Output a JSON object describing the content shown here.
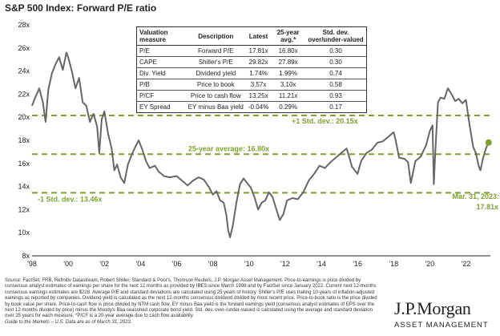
{
  "title": "S&P 500 Index: Forward P/E ratio",
  "chart_data": {
    "type": "line",
    "ylim": [
      8,
      28
    ],
    "xlim": [
      1998,
      2023.35
    ],
    "y_ticks": [
      8,
      10,
      12,
      14,
      16,
      18,
      20,
      22,
      24,
      26,
      28
    ],
    "y_tick_labels": [
      "8x",
      "10x",
      "12x",
      "14x",
      "16x",
      "18x",
      "20x",
      "22x",
      "24x",
      "26x",
      "28x"
    ],
    "x_ticks": [
      1998,
      2000,
      2002,
      2004,
      2006,
      2008,
      2010,
      2012,
      2014,
      2016,
      2018,
      2020,
      2022
    ],
    "x_tick_labels": [
      "'98",
      "'00",
      "'02",
      "'04",
      "'06",
      "'08",
      "'10",
      "'12",
      "'14",
      "'16",
      "'18",
      "'20",
      "'22"
    ],
    "series": [
      {
        "x": [
          1998.0,
          1998.2,
          1998.4,
          1998.6,
          1998.75,
          1998.9,
          1999.1,
          1999.3,
          1999.5,
          1999.7,
          1999.9,
          2000.0,
          2000.2,
          2000.4,
          2000.6,
          2000.8,
          2001.0,
          2001.2,
          2001.4,
          2001.6,
          2001.72,
          2001.85,
          2002.0,
          2002.2,
          2002.4,
          2002.55,
          2002.7,
          2002.9,
          2003.1,
          2003.3,
          2003.5,
          2003.7,
          2003.9,
          2004.1,
          2004.3,
          2004.5,
          2004.8,
          2005.0,
          2005.3,
          2005.6,
          2006.0,
          2006.3,
          2006.6,
          2006.9,
          2007.2,
          2007.5,
          2007.8,
          2008.0,
          2008.2,
          2008.4,
          2008.6,
          2008.75,
          2008.85,
          2008.95,
          2009.1,
          2009.3,
          2009.5,
          2009.7,
          2009.9,
          2010.1,
          2010.3,
          2010.5,
          2010.7,
          2010.9,
          2011.1,
          2011.3,
          2011.5,
          2011.7,
          2011.9,
          2012.1,
          2012.4,
          2012.7,
          2013.0,
          2013.3,
          2013.6,
          2013.9,
          2014.2,
          2014.5,
          2014.8,
          2015.1,
          2015.4,
          2015.7,
          2016.0,
          2016.2,
          2016.5,
          2016.8,
          2017.1,
          2017.4,
          2017.7,
          2018.0,
          2018.1,
          2018.3,
          2018.6,
          2018.8,
          2018.95,
          2019.2,
          2019.5,
          2019.8,
          2020.0,
          2020.15,
          2020.22,
          2020.3,
          2020.45,
          2020.6,
          2020.8,
          2021.0,
          2021.2,
          2021.4,
          2021.6,
          2021.8,
          2022.0,
          2022.2,
          2022.4,
          2022.55,
          2022.7,
          2022.8,
          2022.95,
          2023.1,
          2023.25
        ],
        "values": [
          21.0,
          21.8,
          22.5,
          21.3,
          19.6,
          22.4,
          23.8,
          24.6,
          25.2,
          24.1,
          25.6,
          25.2,
          24.0,
          22.5,
          23.4,
          21.3,
          21.0,
          19.6,
          20.3,
          19.2,
          16.9,
          19.8,
          20.5,
          18.6,
          17.3,
          15.4,
          15.9,
          14.8,
          14.3,
          15.9,
          16.7,
          17.4,
          18.0,
          17.2,
          16.2,
          15.6,
          15.8,
          15.3,
          14.9,
          14.8,
          14.9,
          14.5,
          14.1,
          14.5,
          14.8,
          14.6,
          13.9,
          13.3,
          13.6,
          12.8,
          12.6,
          11.5,
          10.2,
          9.6,
          10.6,
          12.6,
          14.2,
          14.7,
          14.3,
          13.9,
          13.1,
          12.0,
          12.6,
          12.8,
          13.5,
          13.1,
          12.1,
          11.1,
          11.6,
          12.8,
          13.0,
          12.9,
          13.5,
          14.5,
          15.1,
          15.8,
          15.6,
          16.1,
          16.5,
          16.9,
          17.3,
          15.7,
          15.1,
          16.2,
          16.9,
          17.2,
          17.8,
          17.9,
          18.3,
          18.7,
          18.1,
          16.5,
          16.4,
          16.1,
          14.3,
          16.2,
          16.6,
          17.6,
          18.8,
          19.3,
          14.2,
          16.9,
          21.3,
          21.7,
          21.6,
          22.5,
          22.0,
          21.4,
          21.6,
          21.2,
          21.5,
          19.3,
          17.4,
          16.9,
          15.8,
          15.4,
          16.5,
          17.3,
          17.81
        ]
      }
    ],
    "reference_lines": [
      {
        "value": 20.15,
        "label": "+1 Std. dev.: 20.15x"
      },
      {
        "value": 16.8,
        "label": "25-year average: 16.80x"
      },
      {
        "value": 13.46,
        "label": "-1 Std. dev.: 13.46x"
      }
    ],
    "annotation": {
      "label_line1": "Mar. 31, 2023:",
      "label_line2": "17.81x",
      "x": 2023.25,
      "value": 17.81
    },
    "line_color": "#666666",
    "ref_color": "#7ba22c"
  },
  "stats_table": {
    "headers": [
      "Valuation measure",
      "Description",
      "Latest",
      "25-year avg.*",
      "Std. dev. over/under-valued"
    ],
    "rows": [
      [
        "P/E",
        "Forward P/E",
        "17.81x",
        "16.80x",
        "0.30"
      ],
      [
        "CAPE",
        "Shiller's P/E",
        "29.82x",
        "27.89x",
        "0.30"
      ],
      [
        "Div. Yield",
        "Dividend yield",
        "1.74%",
        "1.99%",
        "0.74"
      ],
      [
        "P/B",
        "Price to book",
        "3.57x",
        "3.10x",
        "0.58"
      ],
      [
        "P/CF",
        "Price to cash flow",
        "13.25x",
        "11.21x",
        "0.93"
      ],
      [
        "EY Spread",
        "EY minus Baa yield",
        "-0.04%",
        "0.29%",
        "0.17"
      ]
    ]
  },
  "source_text": "Source: FactSet, FRB, Refinitiv Datastream, Robert Shiller, Standard & Poor's, Thomson Reuters, J.P. Morgan Asset Management. Price-to-earnings is price divided by consensus analyst estimates of earnings per share for the next 12 months as provided by IBES since March 1998 and by FactSet since January 2022. Current next 12-months consensus earnings estimates are $228. Average P/E and standard deviations are calculated using 25 years of history. Shiller's P/E uses trailing 10-years of inflation-adjusted earnings as reported by companies. Dividend yield is calculated as the next 12-months consensus dividend divided by most recent price. Price-to-book ratio is the price divided by book value per share. Price-to-cash flow is price divided by NTM cash flow. EY minus Baa yield is the forward earnings yield (consensus analyst estimates of EPS over the next 12 months divided by price) minus the Moody's Baa seasoned corporate bond yield. Std. dev. over-/under-valued is calculated using the average and standard deviation over 25 years for each measure. *P/CF is a 20-year average due to cash flow availability.",
  "guide_text": "Guide to the Markets – U.S. Data are as of March 31, 2023.",
  "logo": {
    "brand": "J.P.Morgan",
    "sub": "ASSET MANAGEMENT"
  }
}
